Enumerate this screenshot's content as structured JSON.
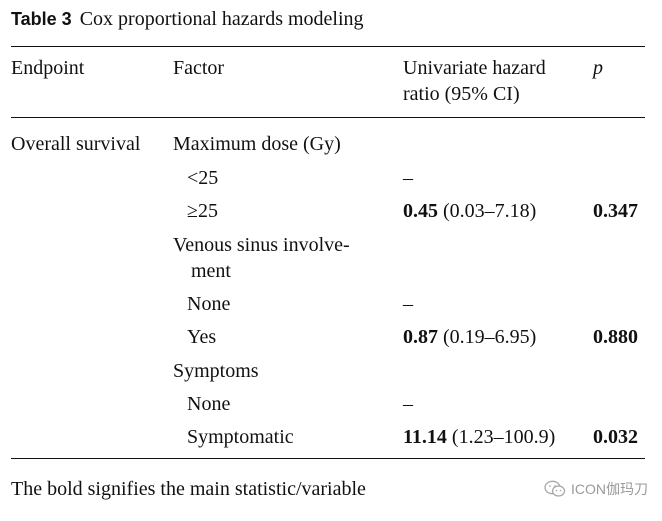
{
  "caption": {
    "label": "Table 3",
    "title": "Cox proportional hazards modeling"
  },
  "headers": {
    "endpoint": "Endpoint",
    "factor": "Factor",
    "hr_line1": "Univariate hazard",
    "hr_line2": "ratio (95% CI)",
    "p": "p"
  },
  "rows": {
    "endpoint": "Overall survival",
    "maxdose": {
      "label": "Maximum dose (Gy)"
    },
    "lt25": {
      "label": "<25",
      "hr": "–"
    },
    "ge25": {
      "label": "≥25",
      "hr_value": "0.45",
      "hr_ci": "(0.03–7.18)",
      "p": "0.347"
    },
    "venous": {
      "label_line1": "Venous sinus involve-",
      "label_line2": "ment"
    },
    "venous_none": {
      "label": "None",
      "hr": "–"
    },
    "venous_yes": {
      "label": "Yes",
      "hr_value": "0.87",
      "hr_ci": "(0.19–6.95)",
      "p": "0.880"
    },
    "symptoms": {
      "label": "Symptoms"
    },
    "symptoms_none": {
      "label": "None",
      "hr": "–"
    },
    "symptomatic": {
      "label": "Symptomatic",
      "hr_value": "11.14",
      "hr_ci": "(1.23–100.9)",
      "p": "0.032"
    }
  },
  "footnote": "The bold signifies the main statistic/variable",
  "watermark": {
    "text": "ICON伽玛刀",
    "icon": "wechat-icon"
  }
}
